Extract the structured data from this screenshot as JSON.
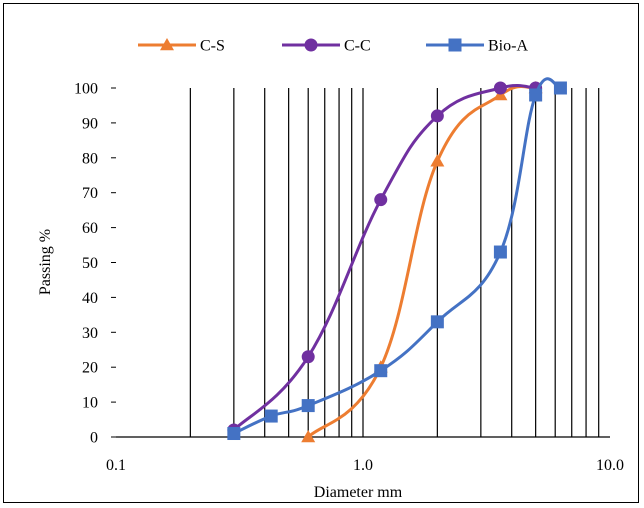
{
  "chart_data": {
    "type": "line",
    "title": "",
    "xlabel": "Diameter mm",
    "ylabel": "Passing %",
    "x_scale": "log",
    "xlim": [
      0.1,
      10.0
    ],
    "ylim": [
      0,
      100
    ],
    "x_ticks": [
      {
        "value": 0.1,
        "label": "0.1"
      },
      {
        "value": 1.0,
        "label": "1.0"
      },
      {
        "value": 10.0,
        "label": "10.0"
      }
    ],
    "y_ticks": [
      {
        "value": 0,
        "label": "0"
      },
      {
        "value": 10,
        "label": "10"
      },
      {
        "value": 20,
        "label": "20"
      },
      {
        "value": 30,
        "label": "30"
      },
      {
        "value": 40,
        "label": "40"
      },
      {
        "value": 50,
        "label": "50"
      },
      {
        "value": 60,
        "label": "60"
      },
      {
        "value": 70,
        "label": "70"
      },
      {
        "value": 80,
        "label": "80"
      },
      {
        "value": 90,
        "label": "90"
      },
      {
        "value": 100,
        "label": "100"
      }
    ],
    "vertical_gridlines": [
      0.2,
      0.3,
      0.4,
      0.5,
      0.6,
      0.7,
      0.8,
      0.9,
      1.0,
      2.0,
      3.0,
      4.0,
      5.0,
      6.0,
      7.0,
      8.0,
      9.0
    ],
    "grid": "vertical",
    "legend_position": "top",
    "series": [
      {
        "name": "C-S",
        "color": "#ED7D31",
        "marker": "triangle",
        "points": [
          [
            0.6,
            0
          ],
          [
            1.18,
            20
          ],
          [
            2.0,
            79
          ],
          [
            3.6,
            98
          ],
          [
            5.0,
            100
          ]
        ]
      },
      {
        "name": "C-C",
        "color": "#7030A0",
        "marker": "circle",
        "points": [
          [
            0.3,
            2
          ],
          [
            0.6,
            23
          ],
          [
            1.18,
            68
          ],
          [
            2.0,
            92
          ],
          [
            3.6,
            100
          ],
          [
            5.0,
            100
          ]
        ]
      },
      {
        "name": "Bio-A",
        "color": "#4472C4",
        "marker": "square",
        "points": [
          [
            0.3,
            1
          ],
          [
            0.425,
            6
          ],
          [
            0.6,
            9
          ],
          [
            1.18,
            19
          ],
          [
            2.0,
            33
          ],
          [
            3.6,
            53
          ],
          [
            5.0,
            98
          ],
          [
            6.3,
            100
          ]
        ]
      }
    ]
  }
}
